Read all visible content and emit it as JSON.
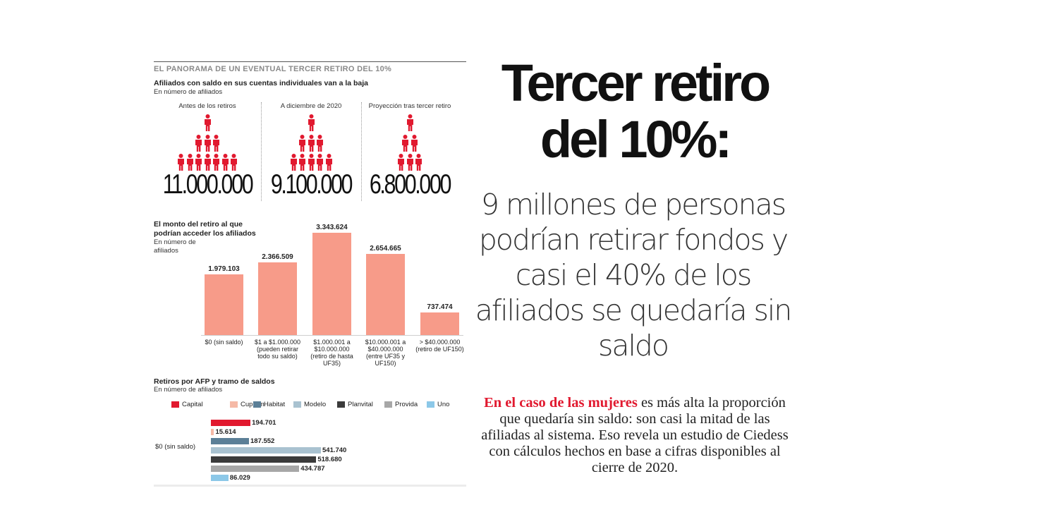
{
  "infographic": {
    "kicker": "EL PANORAMA DE UN EVENTUAL TERCER RETIRO DEL 10%",
    "section1": {
      "title": "Afiliados con saldo en sus cuentas individuales van a la baja",
      "subtitle": "En número de afiliados",
      "panels": [
        {
          "caption": "Antes de los retiros",
          "value": "11.000.000",
          "pyramid_rows": [
            1,
            3,
            7
          ]
        },
        {
          "caption": "A diciembre de 2020",
          "value": "9.100.000",
          "pyramid_rows": [
            1,
            3,
            5
          ]
        },
        {
          "caption": "Proyección tras tercer retiro",
          "value": "6.800.000",
          "pyramid_rows": [
            1,
            2,
            3
          ]
        }
      ],
      "icon": "person-icon",
      "icon_color": "#e1192f"
    },
    "section2": {
      "title_line1": "El monto del retiro al que",
      "title_line2": "podrían acceder los afiliados",
      "subtitle_line1": "En número de",
      "subtitle_line2": "afiliados"
    },
    "section3": {
      "title": "Retiros por AFP y tramo de saldos",
      "subtitle": "En número de afiliados"
    }
  },
  "chart_data": [
    {
      "type": "bar",
      "categories": [
        "$0 (sin saldo)",
        "$1 a $1.000.000\n(pueden retirar\ntodo su saldo)",
        "$1.000.001 a\n$10.000.000\n(retiro de hasta\nUF35)",
        "$10.000.001 a\n$40.000.000\n(entre UF35 y\nUF150)",
        "> $40.000.000\n(retiro de UF150)"
      ],
      "values": [
        1979103,
        2366509,
        3343624,
        2654665,
        737474
      ],
      "value_labels": [
        "1.979.103",
        "2.366.509",
        "3.343.624",
        "2.654.665",
        "737.474"
      ],
      "color": "#f79b89"
    },
    {
      "type": "bar",
      "orientation": "horizontal",
      "categories": [
        "$0 (sin saldo)"
      ],
      "series": [
        {
          "name": "Capital",
          "color": "#e1192f",
          "values": [
            194701
          ],
          "label": "194.701"
        },
        {
          "name": "Cuprum",
          "color": "#f5b9a6",
          "values": [
            15614
          ],
          "label": "15.614"
        },
        {
          "name": "Habitat",
          "color": "#5b7f97",
          "values": [
            187552
          ],
          "label": "187.552"
        },
        {
          "name": "Modelo",
          "color": "#a9c2d0",
          "values": [
            541740
          ],
          "label": "541.740"
        },
        {
          "name": "Planvital",
          "color": "#3b3b3b",
          "values": [
            518680
          ],
          "label": "518.680"
        },
        {
          "name": "Provida",
          "color": "#a7a7a7",
          "values": [
            434787
          ],
          "label": "434.787"
        },
        {
          "name": "Uno",
          "color": "#8cc8e8",
          "values": [
            86029
          ],
          "label": "86.029"
        }
      ],
      "legend": "top"
    }
  ],
  "article": {
    "headline_line1": "Tercer retiro",
    "headline_line2": "del 10%:",
    "subhead": "9 millones de personas podrían retirar fondos y casi el 40% de los afiliados se quedaría sin saldo",
    "body_lead": "En el caso de las mujeres",
    "body_rest": " es más alta la proporción que quedaría sin saldo: son casi la mitad de las afiliadas al sistema. Eso revela un estudio de Ciedess con cálculos hechos en base a cifras disponibles al cierre de 2020.",
    "accent_color": "#e1192f"
  }
}
